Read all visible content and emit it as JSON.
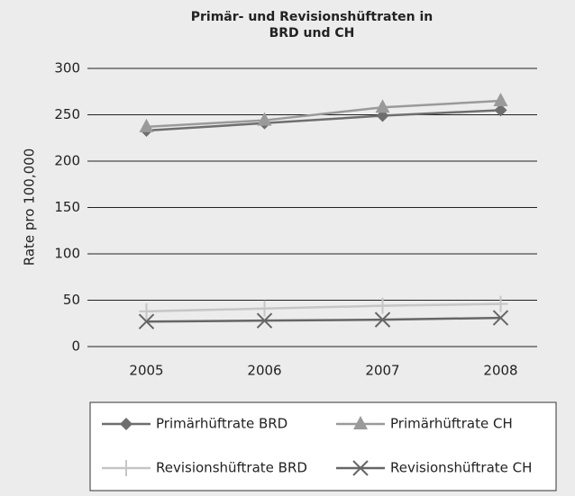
{
  "chart_data": {
    "type": "line",
    "title": "Primär- und Revisionshüftraten in BRD und CH",
    "y_label": "Rate pro 100,000",
    "categories": [
      "2005",
      "2006",
      "2007",
      "2008"
    ],
    "series": [
      {
        "name": "Primärhüftrate BRD",
        "color": "#6e6e6e",
        "marker": "diamond",
        "values": [
          233,
          241,
          249,
          255
        ]
      },
      {
        "name": "Primärhüftrate CH",
        "color": "#9a9a9a",
        "marker": "triangle",
        "values": [
          237,
          244,
          258,
          265
        ]
      },
      {
        "name": "Revisionshüftrate BRD",
        "color": "#c6c6c6",
        "marker": "plus",
        "values": [
          38,
          41,
          44,
          46
        ]
      },
      {
        "name": "Revisionshüftrate CH",
        "color": "#666666",
        "marker": "x",
        "values": [
          27,
          28,
          29,
          31
        ]
      }
    ],
    "ylim": [
      0,
      300
    ],
    "yticks": [
      0,
      50,
      100,
      150,
      200,
      250,
      300
    ],
    "grid": true,
    "legend": "bottom"
  }
}
